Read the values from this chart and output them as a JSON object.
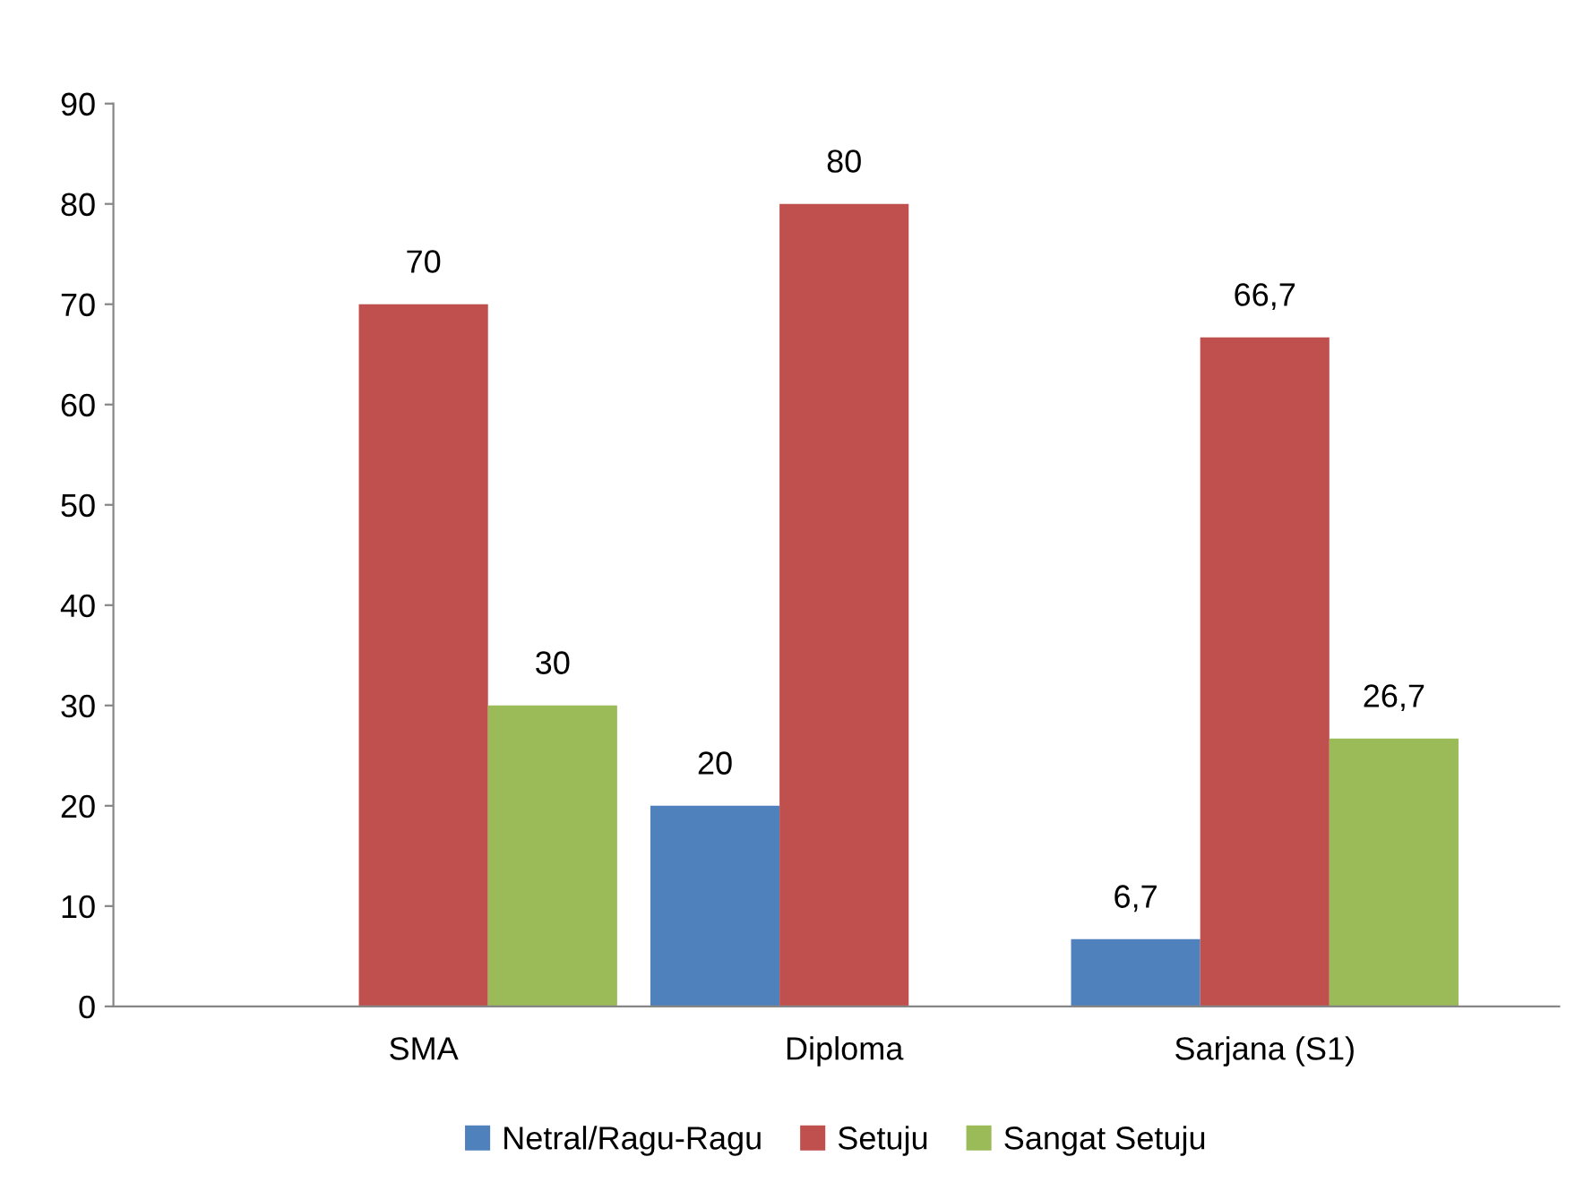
{
  "chart_data": {
    "type": "bar",
    "categories": [
      "SMA",
      "Diploma",
      "Sarjana (S1)"
    ],
    "series": [
      {
        "name": "Netral/Ragu-Ragu",
        "color": "#4f81bd",
        "values": [
          null,
          20,
          6.7
        ],
        "value_labels": [
          null,
          "20",
          "6,7"
        ]
      },
      {
        "name": "Setuju",
        "color": "#c0504d",
        "values": [
          70,
          80,
          66.7
        ],
        "value_labels": [
          "70",
          "80",
          "66,7"
        ]
      },
      {
        "name": "Sangat Setuju",
        "color": "#9bbb59",
        "values": [
          30,
          null,
          26.7
        ],
        "value_labels": [
          "30",
          null,
          "26,7"
        ]
      }
    ],
    "ylim": [
      0,
      90
    ],
    "yticks": [
      0,
      10,
      20,
      30,
      40,
      50,
      60,
      70,
      80,
      90
    ],
    "grid": false,
    "legend": "bottom"
  }
}
